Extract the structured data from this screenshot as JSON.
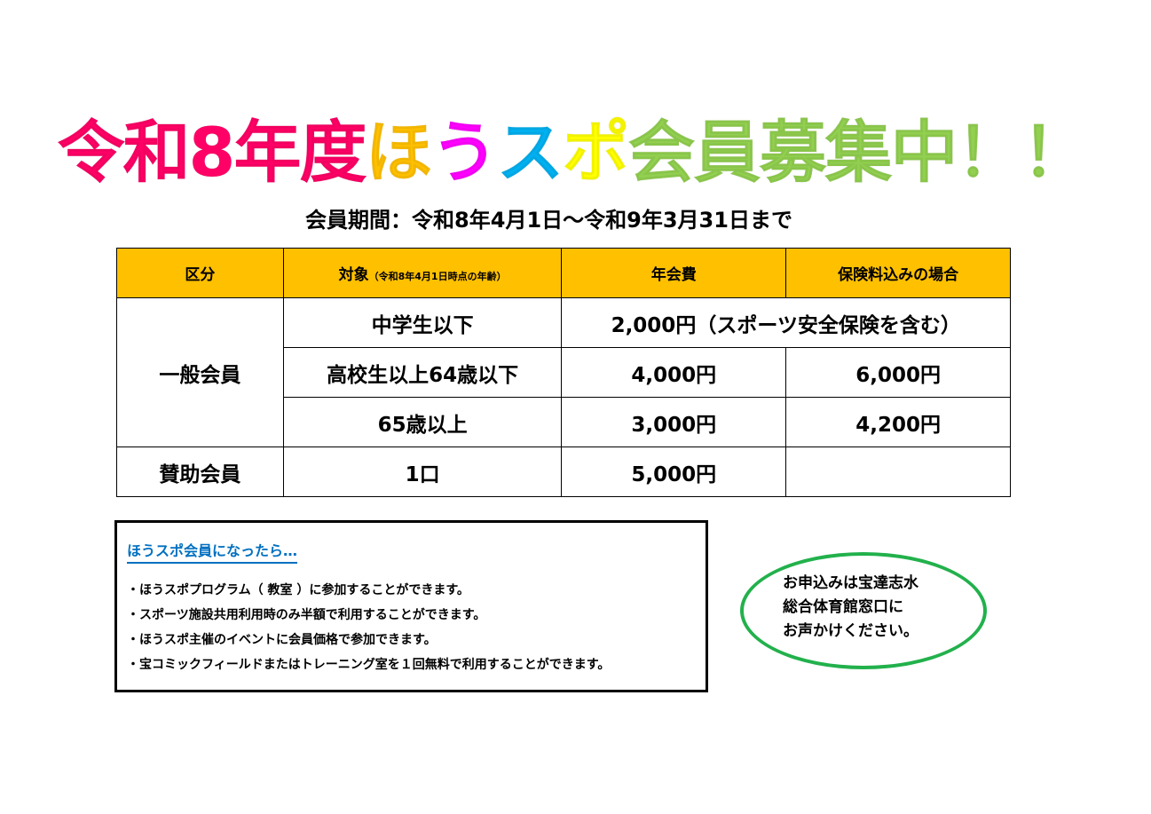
{
  "title": {
    "parts": [
      {
        "text": "令和8年度",
        "color": "#ff0066"
      },
      {
        "text": "ほ",
        "color": "#ffc000"
      },
      {
        "text": "う",
        "color": "#ff00ff"
      },
      {
        "text": "ス",
        "color": "#00b0f0"
      },
      {
        "text": "ポ",
        "color": "#ffff00"
      },
      {
        "text": "会員募集中！！",
        "color": "#92d050"
      }
    ]
  },
  "period": "会員期間：令和8年4月1日～令和9年3月31日まで",
  "table": {
    "header_color": "#ffc000",
    "headers": [
      "区分",
      "対象",
      "（令和8年4月1日時点の年齢）",
      "年会費",
      "保険料込みの場合"
    ],
    "general": "一般会員",
    "rows": [
      {
        "target": "中学生以下",
        "fee": "2,000円（スポーツ安全保険を含む）"
      },
      {
        "target": "高校生以上64歳以下",
        "fee": "4,000円",
        "insured": "6,000円"
      },
      {
        "target": "65歳以上",
        "fee": "3,000円",
        "insured": "4,200円"
      }
    ],
    "support": {
      "category": "賛助会員",
      "target": "1口",
      "fee": "5,000円",
      "insured": ""
    }
  },
  "benefits": {
    "heading": "ほうスポ会員になったら…",
    "items": [
      "・ほうスポプログラム（ 教室 ）に参加することができます。",
      "・スポーツ施設共用利用時のみ半額で利用することができます。",
      "・ほうスポ主催のイベントに会員価格で参加できます。",
      "・宝コミックフィールドまたはトレーニング室を１回無料で利用することができます。"
    ]
  },
  "apply": {
    "lines": [
      "お申込みは宝達志水",
      "総合体育館窓口に",
      "お声かけください。"
    ],
    "border_color": "#22b14c"
  }
}
